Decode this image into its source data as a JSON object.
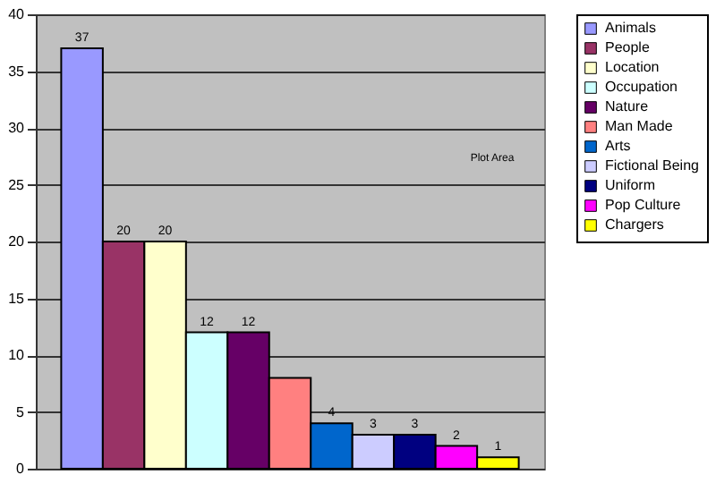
{
  "chart_data": {
    "type": "bar",
    "categories": [
      null
    ],
    "series": [
      {
        "name": "Animals",
        "color": "#9999ff",
        "values": [
          37
        ],
        "value_labels": [
          "37"
        ]
      },
      {
        "name": "People",
        "color": "#993366",
        "values": [
          20
        ],
        "value_labels": [
          "20"
        ]
      },
      {
        "name": "Location",
        "color": "#ffffcc",
        "values": [
          20
        ],
        "value_labels": [
          "20"
        ]
      },
      {
        "name": "Occupation",
        "color": "#ccffff",
        "values": [
          12
        ],
        "value_labels": [
          "12"
        ]
      },
      {
        "name": "Nature",
        "color": "#660066",
        "values": [
          12
        ],
        "value_labels": [
          "12"
        ]
      },
      {
        "name": "Man Made",
        "color": "#ff8080",
        "values": [
          8
        ],
        "value_labels": [
          null
        ]
      },
      {
        "name": "Arts",
        "color": "#0066cc",
        "values": [
          4
        ],
        "value_labels": [
          "4"
        ]
      },
      {
        "name": "Fictional Being",
        "color": "#ccccff",
        "values": [
          3
        ],
        "value_labels": [
          "3"
        ]
      },
      {
        "name": "Uniform",
        "color": "#000080",
        "values": [
          3
        ],
        "value_labels": [
          "3"
        ]
      },
      {
        "name": "Pop Culture",
        "color": "#ff00ff",
        "values": [
          2
        ],
        "value_labels": [
          "2"
        ]
      },
      {
        "name": "Chargers",
        "color": "#ffff00",
        "values": [
          1
        ],
        "value_labels": [
          "1"
        ]
      }
    ],
    "ylim": [
      0,
      40
    ],
    "yticks": [
      0,
      5,
      10,
      15,
      20,
      25,
      30,
      35,
      40
    ],
    "grid": "y",
    "legend": "right",
    "tick_labels": "y",
    "annotations": [
      "Plot Area"
    ]
  }
}
